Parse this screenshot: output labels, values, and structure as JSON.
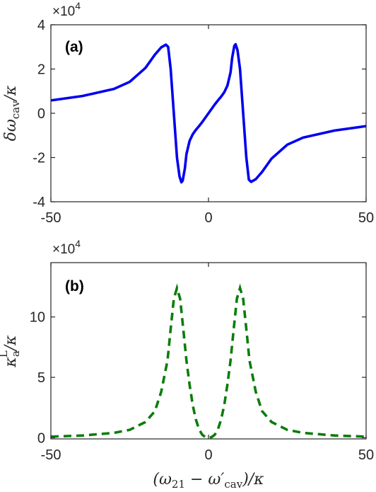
{
  "chart_data": [
    {
      "type": "line",
      "panel_label": "(a)",
      "ylabel": "δω_cav/κ",
      "ylabel_main": "δω",
      "ylabel_sub": "cav",
      "ylabel_tail": "/κ",
      "multiplier": "×10",
      "multiplier_exp": "4",
      "xlim": [
        -50,
        50
      ],
      "ylim": [
        -40000,
        40000
      ],
      "xticks": [
        -50,
        0,
        50
      ],
      "xtick_labels": [
        "-50",
        "0",
        "50"
      ],
      "yticks": [
        -40000,
        -20000,
        0,
        20000,
        40000
      ],
      "ytick_labels": [
        "-4",
        "-2",
        "0",
        "2",
        "4"
      ],
      "grid": false,
      "series": [
        {
          "color": "#0000ee",
          "line_style": "solid",
          "x": [
            -50,
            -40,
            -30,
            -25,
            -20,
            -17,
            -15,
            -13.5,
            -12.8,
            -12,
            -11,
            -10,
            -9.2,
            -8.6,
            -8.2,
            -7.5,
            -7,
            -6,
            -5,
            -4,
            -3,
            -2,
            -1,
            0,
            1,
            2,
            3,
            4,
            5,
            6,
            7,
            7.5,
            8.2,
            8.6,
            9.2,
            10,
            11,
            12,
            12.8,
            13.5,
            15,
            17,
            20,
            25,
            30,
            40,
            50
          ],
          "y": [
            5800,
            7800,
            11000,
            14200,
            20500,
            26500,
            29800,
            31000,
            30000,
            20000,
            0,
            -20000,
            -28500,
            -31200,
            -30500,
            -25000,
            -18500,
            -12500,
            -9500,
            -7500,
            -5800,
            -4000,
            -2000,
            0,
            2000,
            4000,
            5800,
            7500,
            9500,
            12500,
            18500,
            25000,
            30500,
            31200,
            28500,
            20000,
            0,
            -20000,
            -30000,
            -31000,
            -29800,
            -26500,
            -20500,
            -14200,
            -11000,
            -7800,
            -5800
          ]
        }
      ]
    },
    {
      "type": "line",
      "panel_label": "(b)",
      "ylabel": "κ_a^L/κ",
      "ylabel_main": "κ",
      "ylabel_sub": "a",
      "ylabel_sup": "L",
      "ylabel_tail": "/κ",
      "multiplier": "×10",
      "multiplier_exp": "4",
      "xlabel": "(ω_21 − ω'_cav)/κ",
      "xlabel_open": "(ω",
      "xlabel_sub1": "21",
      "xlabel_mid": " − ω′",
      "xlabel_sub2": "cav",
      "xlabel_tail": ")/κ",
      "xlim": [
        -50,
        50
      ],
      "ylim": [
        -1000,
        145000
      ],
      "xticks": [
        -50,
        0,
        50
      ],
      "xtick_labels": [
        "-50",
        "0",
        "50"
      ],
      "yticks": [
        0,
        50000,
        100000
      ],
      "ytick_labels": [
        "0",
        "5",
        "10"
      ],
      "grid": false,
      "series": [
        {
          "color": "#0a7d0a",
          "line_style": "dashed",
          "x": [
            -50,
            -40,
            -30,
            -25,
            -20,
            -17,
            -15,
            -13,
            -12,
            -11,
            -10,
            -9,
            -8,
            -7,
            -6,
            -5,
            -4,
            -3,
            -2,
            -1,
            0,
            1,
            2,
            3,
            4,
            5,
            6,
            7,
            8,
            9,
            10,
            11,
            12,
            13,
            15,
            17,
            20,
            25,
            30,
            40,
            50
          ],
          "y": [
            900,
            1800,
            4000,
            6500,
            13000,
            22000,
            38000,
            64000,
            90000,
            115000,
            124000,
            115000,
            90000,
            64000,
            44000,
            27000,
            15000,
            7000,
            2500,
            500,
            0,
            500,
            2500,
            7000,
            15000,
            27000,
            44000,
            64000,
            90000,
            115000,
            124000,
            115000,
            90000,
            64000,
            38000,
            22000,
            13000,
            6500,
            4000,
            1800,
            900
          ]
        }
      ]
    }
  ]
}
